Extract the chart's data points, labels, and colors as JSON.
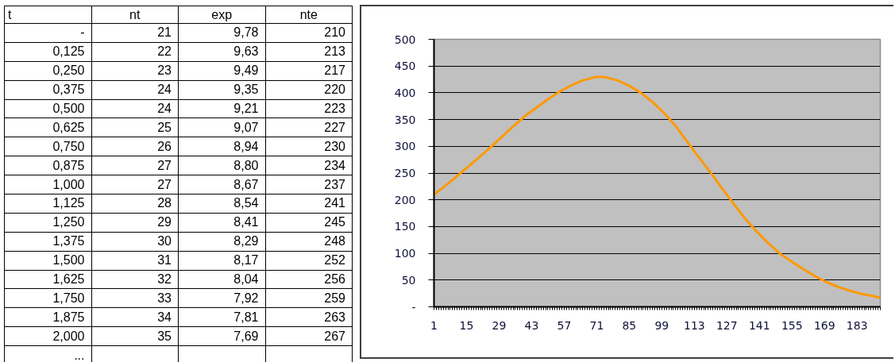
{
  "chart_data": [
    {
      "type": "heatmap",
      "ylabel": "t",
      "categories": [
        "nt",
        "exp",
        "nte"
      ],
      "y_categories": [
        "-",
        "0,125",
        "0,250",
        "0,375",
        "0,500",
        "0,625",
        "0,750",
        "0,875",
        "1,000",
        "1,125",
        "1,250",
        "1,375",
        "1,500",
        "1,625",
        "1,750",
        "1,875",
        "2,000",
        "..."
      ],
      "cells": [
        [
          21,
          9.78,
          210
        ],
        [
          22,
          9.63,
          213
        ],
        [
          23,
          9.49,
          217
        ],
        [
          24,
          9.35,
          220
        ],
        [
          24,
          9.21,
          223
        ],
        [
          25,
          9.07,
          227
        ],
        [
          26,
          8.94,
          230
        ],
        [
          27,
          8.8,
          234
        ],
        [
          27,
          8.67,
          237
        ],
        [
          28,
          8.54,
          241
        ],
        [
          29,
          8.41,
          245
        ],
        [
          30,
          8.29,
          248
        ],
        [
          31,
          8.17,
          252
        ],
        [
          32,
          8.04,
          256
        ],
        [
          33,
          7.92,
          259
        ],
        [
          34,
          7.81,
          263
        ],
        [
          35,
          7.69,
          267
        ],
        [
          null,
          null,
          null
        ]
      ],
      "cell_labels": [
        [
          "21",
          "9,78",
          "210"
        ],
        [
          "22",
          "9,63",
          "213"
        ],
        [
          "23",
          "9,49",
          "217"
        ],
        [
          "24",
          "9,35",
          "220"
        ],
        [
          "24",
          "9,21",
          "223"
        ],
        [
          "25",
          "9,07",
          "227"
        ],
        [
          "26",
          "8,94",
          "230"
        ],
        [
          "27",
          "8,80",
          "234"
        ],
        [
          "27",
          "8,67",
          "237"
        ],
        [
          "28",
          "8,54",
          "241"
        ],
        [
          "29",
          "8,41",
          "245"
        ],
        [
          "30",
          "8,29",
          "248"
        ],
        [
          "31",
          "8,17",
          "252"
        ],
        [
          "32",
          "8,04",
          "256"
        ],
        [
          "33",
          "7,92",
          "259"
        ],
        [
          "34",
          "7,81",
          "263"
        ],
        [
          "35",
          "7,69",
          "267"
        ],
        [
          null,
          null,
          null
        ]
      ]
    },
    {
      "type": "line",
      "color": "#ff9900",
      "x": [
        1,
        2,
        3,
        4,
        5,
        6,
        7,
        8,
        9,
        10,
        11,
        12,
        13,
        14,
        15,
        16,
        17,
        20,
        25,
        30,
        35,
        40,
        45,
        50,
        55,
        60,
        65,
        70,
        72,
        75,
        80,
        85,
        90,
        95,
        100,
        105,
        110,
        115,
        120,
        125,
        130,
        135,
        140,
        145,
        150,
        155,
        160,
        165,
        170,
        175,
        180,
        185,
        190,
        193
      ],
      "values": [
        210,
        213,
        217,
        220,
        223,
        227,
        230,
        234,
        237,
        241,
        245,
        248,
        252,
        256,
        259,
        263,
        267,
        278,
        297,
        317,
        337,
        356,
        372,
        388,
        402,
        414,
        423,
        429,
        430,
        429,
        423,
        413,
        400,
        383,
        362,
        338,
        308,
        279,
        251,
        221,
        192,
        164,
        140,
        118,
        99,
        84,
        70,
        57,
        46,
        37,
        30,
        24,
        20,
        17
      ],
      "xlim": [
        1,
        193
      ],
      "xticks": [
        1,
        {
          "value": 2,
          "label": null
        },
        {
          "value": 3,
          "label": null
        },
        {
          "value": 4,
          "label": null
        },
        {
          "value": 5,
          "label": null
        },
        {
          "value": 6,
          "label": null
        },
        {
          "value": 7,
          "label": null
        },
        {
          "value": 8,
          "label": null
        },
        {
          "value": 9,
          "label": null
        },
        {
          "value": 10,
          "label": null
        },
        {
          "value": 11,
          "label": null
        },
        {
          "value": 12,
          "label": null
        },
        {
          "value": 13,
          "label": null
        },
        {
          "value": 14,
          "label": null
        },
        15,
        {
          "value": 16,
          "label": null
        },
        {
          "value": 17,
          "label": null
        },
        {
          "value": 18,
          "label": null
        },
        {
          "value": 19,
          "label": null
        },
        {
          "value": 20,
          "label": null
        },
        {
          "value": 21,
          "label": null
        },
        {
          "value": 22,
          "label": null
        },
        {
          "value": 23,
          "label": null
        },
        {
          "value": 24,
          "label": null
        },
        {
          "value": 25,
          "label": null
        },
        {
          "value": 26,
          "label": null
        },
        {
          "value": 27,
          "label": null
        },
        {
          "value": 28,
          "label": null
        },
        29,
        {
          "value": 30,
          "label": null
        },
        {
          "value": 31,
          "label": null
        },
        {
          "value": 32,
          "label": null
        },
        {
          "value": 33,
          "label": null
        },
        {
          "value": 34,
          "label": null
        },
        {
          "value": 35,
          "label": null
        },
        {
          "value": 36,
          "label": null
        },
        {
          "value": 37,
          "label": null
        },
        {
          "value": 38,
          "label": null
        },
        {
          "value": 39,
          "label": null
        },
        {
          "value": 40,
          "label": null
        },
        {
          "value": 41,
          "label": null
        },
        {
          "value": 42,
          "label": null
        },
        43,
        {
          "value": 44,
          "label": null
        },
        {
          "value": 45,
          "label": null
        },
        {
          "value": 46,
          "label": null
        },
        {
          "value": 47,
          "label": null
        },
        {
          "value": 48,
          "label": null
        },
        {
          "value": 49,
          "label": null
        },
        {
          "value": 50,
          "label": null
        },
        {
          "value": 51,
          "label": null
        },
        {
          "value": 52,
          "label": null
        },
        {
          "value": 53,
          "label": null
        },
        {
          "value": 54,
          "label": null
        },
        {
          "value": 55,
          "label": null
        },
        {
          "value": 56,
          "label": null
        },
        57,
        {
          "value": 58,
          "label": null
        },
        {
          "value": 59,
          "label": null
        },
        {
          "value": 60,
          "label": null
        },
        {
          "value": 61,
          "label": null
        },
        {
          "value": 62,
          "label": null
        },
        {
          "value": 63,
          "label": null
        },
        {
          "value": 64,
          "label": null
        },
        {
          "value": 65,
          "label": null
        },
        {
          "value": 66,
          "label": null
        },
        {
          "value": 67,
          "label": null
        },
        {
          "value": 68,
          "label": null
        },
        {
          "value": 69,
          "label": null
        },
        {
          "value": 70,
          "label": null
        },
        71,
        {
          "value": 72,
          "label": null
        },
        {
          "value": 73,
          "label": null
        },
        {
          "value": 74,
          "label": null
        },
        {
          "value": 75,
          "label": null
        },
        {
          "value": 76,
          "label": null
        },
        {
          "value": 77,
          "label": null
        },
        {
          "value": 78,
          "label": null
        },
        {
          "value": 79,
          "label": null
        },
        {
          "value": 80,
          "label": null
        },
        {
          "value": 81,
          "label": null
        },
        {
          "value": 82,
          "label": null
        },
        {
          "value": 83,
          "label": null
        },
        {
          "value": 84,
          "label": null
        },
        85,
        {
          "value": 86,
          "label": null
        },
        {
          "value": 87,
          "label": null
        },
        {
          "value": 88,
          "label": null
        },
        {
          "value": 89,
          "label": null
        },
        {
          "value": 90,
          "label": null
        },
        {
          "value": 91,
          "label": null
        },
        {
          "value": 92,
          "label": null
        },
        {
          "value": 93,
          "label": null
        },
        {
          "value": 94,
          "label": null
        },
        {
          "value": 95,
          "label": null
        },
        {
          "value": 96,
          "label": null
        },
        {
          "value": 97,
          "label": null
        },
        {
          "value": 98,
          "label": null
        },
        99,
        {
          "value": 100,
          "label": null
        },
        {
          "value": 101,
          "label": null
        },
        {
          "value": 102,
          "label": null
        },
        {
          "value": 103,
          "label": null
        },
        {
          "value": 104,
          "label": null
        },
        {
          "value": 105,
          "label": null
        },
        {
          "value": 106,
          "label": null
        },
        {
          "value": 107,
          "label": null
        },
        {
          "value": 108,
          "label": null
        },
        {
          "value": 109,
          "label": null
        },
        {
          "value": 110,
          "label": null
        },
        {
          "value": 111,
          "label": null
        },
        {
          "value": 112,
          "label": null
        },
        113,
        {
          "value": 114,
          "label": null
        },
        {
          "value": 115,
          "label": null
        },
        {
          "value": 116,
          "label": null
        },
        {
          "value": 117,
          "label": null
        },
        {
          "value": 118,
          "label": null
        },
        {
          "value": 119,
          "label": null
        },
        {
          "value": 120,
          "label": null
        },
        {
          "value": 121,
          "label": null
        },
        {
          "value": 122,
          "label": null
        },
        {
          "value": 123,
          "label": null
        },
        {
          "value": 124,
          "label": null
        },
        {
          "value": 125,
          "label": null
        },
        {
          "value": 126,
          "label": null
        },
        127,
        {
          "value": 128,
          "label": null
        },
        {
          "value": 129,
          "label": null
        },
        {
          "value": 130,
          "label": null
        },
        {
          "value": 131,
          "label": null
        },
        {
          "value": 132,
          "label": null
        },
        {
          "value": 133,
          "label": null
        },
        {
          "value": 134,
          "label": null
        },
        {
          "value": 135,
          "label": null
        },
        {
          "value": 136,
          "label": null
        },
        {
          "value": 137,
          "label": null
        },
        {
          "value": 138,
          "label": null
        },
        {
          "value": 139,
          "label": null
        },
        {
          "value": 140,
          "label": null
        },
        141,
        {
          "value": 142,
          "label": null
        },
        {
          "value": 143,
          "label": null
        },
        {
          "value": 144,
          "label": null
        },
        {
          "value": 145,
          "label": null
        },
        {
          "value": 146,
          "label": null
        },
        {
          "value": 147,
          "label": null
        },
        {
          "value": 148,
          "label": null
        },
        {
          "value": 149,
          "label": null
        },
        {
          "value": 150,
          "label": null
        },
        {
          "value": 151,
          "label": null
        },
        {
          "value": 152,
          "label": null
        },
        {
          "value": 153,
          "label": null
        },
        {
          "value": 154,
          "label": null
        },
        155,
        {
          "value": 156,
          "label": null
        },
        {
          "value": 157,
          "label": null
        },
        {
          "value": 158,
          "label": null
        },
        {
          "value": 159,
          "label": null
        },
        {
          "value": 160,
          "label": null
        },
        {
          "value": 161,
          "label": null
        },
        {
          "value": 162,
          "label": null
        },
        {
          "value": 163,
          "label": null
        },
        {
          "value": 164,
          "label": null
        },
        {
          "value": 165,
          "label": null
        },
        {
          "value": 166,
          "label": null
        },
        {
          "value": 167,
          "label": null
        },
        {
          "value": 168,
          "label": null
        },
        169,
        {
          "value": 170,
          "label": null
        },
        {
          "value": 171,
          "label": null
        },
        {
          "value": 172,
          "label": null
        },
        {
          "value": 173,
          "label": null
        },
        {
          "value": 174,
          "label": null
        },
        {
          "value": 175,
          "label": null
        },
        {
          "value": 176,
          "label": null
        },
        {
          "value": 177,
          "label": null
        },
        {
          "value": 178,
          "label": null
        },
        {
          "value": 179,
          "label": null
        },
        {
          "value": 180,
          "label": null
        },
        {
          "value": 181,
          "label": null
        },
        {
          "value": 182,
          "label": null
        },
        183,
        {
          "value": 184,
          "label": null
        },
        {
          "value": 185,
          "label": null
        },
        {
          "value": 186,
          "label": null
        },
        {
          "value": 187,
          "label": null
        },
        {
          "value": 188,
          "label": null
        },
        {
          "value": 189,
          "label": null
        },
        {
          "value": 190,
          "label": null
        },
        {
          "value": 191,
          "label": null
        },
        {
          "value": 192,
          "label": null
        },
        {
          "value": 193,
          "label": null
        }
      ],
      "ylim": [
        0,
        500
      ],
      "yticks": [
        {
          "value": 0,
          "label": "-"
        },
        50,
        100,
        150,
        200,
        250,
        300,
        350,
        400,
        450,
        500
      ],
      "grid": "y"
    }
  ]
}
